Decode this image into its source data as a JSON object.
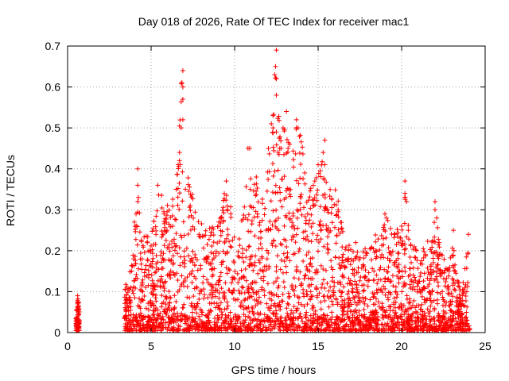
{
  "chart_data": {
    "type": "scatter",
    "title": "Day 018 of 2026, Rate Of TEC Index for receiver mac1",
    "xlabel": "GPS time / hours",
    "ylabel": "ROTI / TECUs",
    "xlim": [
      0,
      25
    ],
    "ylim": [
      0,
      0.7
    ],
    "xticks": [
      "0",
      "5",
      "10",
      "15",
      "20",
      "25"
    ],
    "yticks": [
      "0",
      "0.1",
      "0.2",
      "0.3",
      "0.4",
      "0.5",
      "0.6",
      "0.7"
    ],
    "grid": true,
    "marker": "plus",
    "color": "#ff0000",
    "envelope": [
      [
        0.5,
        0.04
      ],
      [
        0.6,
        0.09
      ],
      [
        0.7,
        0.06
      ],
      [
        3.5,
        0.12
      ],
      [
        3.8,
        0.17
      ],
      [
        4.0,
        0.25
      ],
      [
        4.1,
        0.29
      ],
      [
        4.2,
        0.4
      ],
      [
        4.4,
        0.23
      ],
      [
        4.8,
        0.25
      ],
      [
        5.0,
        0.24
      ],
      [
        5.5,
        0.36
      ],
      [
        6.0,
        0.32
      ],
      [
        6.5,
        0.35
      ],
      [
        6.6,
        0.44
      ],
      [
        6.8,
        0.64
      ],
      [
        7.0,
        0.43
      ],
      [
        7.2,
        0.4
      ],
      [
        7.5,
        0.33
      ],
      [
        8.0,
        0.27
      ],
      [
        8.5,
        0.26
      ],
      [
        9.0,
        0.27
      ],
      [
        9.5,
        0.37
      ],
      [
        10.0,
        0.27
      ],
      [
        10.5,
        0.3
      ],
      [
        10.8,
        0.45
      ],
      [
        11.0,
        0.36
      ],
      [
        11.5,
        0.38
      ],
      [
        11.8,
        0.32
      ],
      [
        12.0,
        0.45
      ],
      [
        12.2,
        0.53
      ],
      [
        12.4,
        0.69
      ],
      [
        12.6,
        0.54
      ],
      [
        12.8,
        0.5
      ],
      [
        13.0,
        0.54
      ],
      [
        13.3,
        0.46
      ],
      [
        13.8,
        0.52
      ],
      [
        14.0,
        0.48
      ],
      [
        14.2,
        0.39
      ],
      [
        14.8,
        0.36
      ],
      [
        15.0,
        0.41
      ],
      [
        15.3,
        0.47
      ],
      [
        15.6,
        0.34
      ],
      [
        16.0,
        0.38
      ],
      [
        16.3,
        0.3
      ],
      [
        16.6,
        0.22
      ],
      [
        17.0,
        0.23
      ],
      [
        17.5,
        0.21
      ],
      [
        18.0,
        0.21
      ],
      [
        18.5,
        0.25
      ],
      [
        18.7,
        0.24
      ],
      [
        19.0,
        0.29
      ],
      [
        19.5,
        0.25
      ],
      [
        20.0,
        0.26
      ],
      [
        20.2,
        0.37
      ],
      [
        20.5,
        0.23
      ],
      [
        21.0,
        0.2
      ],
      [
        21.5,
        0.21
      ],
      [
        22.0,
        0.32
      ],
      [
        22.3,
        0.2
      ],
      [
        22.8,
        0.16
      ],
      [
        23.0,
        0.25
      ],
      [
        23.3,
        0.14
      ],
      [
        23.6,
        0.1
      ],
      [
        24.0,
        0.24
      ]
    ],
    "series": [
      {
        "values": [
          [
            0.6,
            0.09
          ],
          [
            0.65,
            0.055
          ],
          [
            0.55,
            0.035
          ],
          [
            0.6,
            0.02
          ],
          [
            4.2,
            0.4
          ],
          [
            4.2,
            0.36
          ],
          [
            4.1,
            0.29
          ],
          [
            4.0,
            0.27
          ],
          [
            5.4,
            0.36
          ],
          [
            6.5,
            0.35
          ],
          [
            6.7,
            0.44
          ],
          [
            6.9,
            0.64
          ],
          [
            6.85,
            0.61
          ],
          [
            6.9,
            0.6
          ],
          [
            6.9,
            0.57
          ],
          [
            6.9,
            0.52
          ],
          [
            6.8,
            0.5
          ],
          [
            6.7,
            0.42
          ],
          [
            6.75,
            0.41
          ],
          [
            9.5,
            0.37
          ],
          [
            10.8,
            0.45
          ],
          [
            10.9,
            0.45
          ],
          [
            11.3,
            0.38
          ],
          [
            12.5,
            0.69
          ],
          [
            12.45,
            0.65
          ],
          [
            12.4,
            0.63
          ],
          [
            12.5,
            0.62
          ],
          [
            12.3,
            0.53
          ],
          [
            12.2,
            0.51
          ],
          [
            12.3,
            0.5
          ],
          [
            12.5,
            0.49
          ],
          [
            13.1,
            0.54
          ],
          [
            12.9,
            0.5
          ],
          [
            13.7,
            0.52
          ],
          [
            13.8,
            0.5
          ],
          [
            13.3,
            0.46
          ],
          [
            13.2,
            0.45
          ],
          [
            14.2,
            0.39
          ],
          [
            15.4,
            0.47
          ],
          [
            15.3,
            0.44
          ],
          [
            15.4,
            0.41
          ],
          [
            15.0,
            0.41
          ],
          [
            14.8,
            0.37
          ],
          [
            16.2,
            0.3
          ],
          [
            19.0,
            0.29
          ],
          [
            20.2,
            0.37
          ],
          [
            20.2,
            0.34
          ],
          [
            20.3,
            0.32
          ],
          [
            22.0,
            0.32
          ],
          [
            22.0,
            0.3
          ],
          [
            22.1,
            0.28
          ],
          [
            20.0,
            0.26
          ],
          [
            20.4,
            0.25
          ],
          [
            23.1,
            0.25
          ],
          [
            24.0,
            0.24
          ],
          [
            23.9,
            0.1
          ],
          [
            23.1,
            0.16
          ],
          [
            23.2,
            0.15
          ]
        ]
      }
    ]
  }
}
